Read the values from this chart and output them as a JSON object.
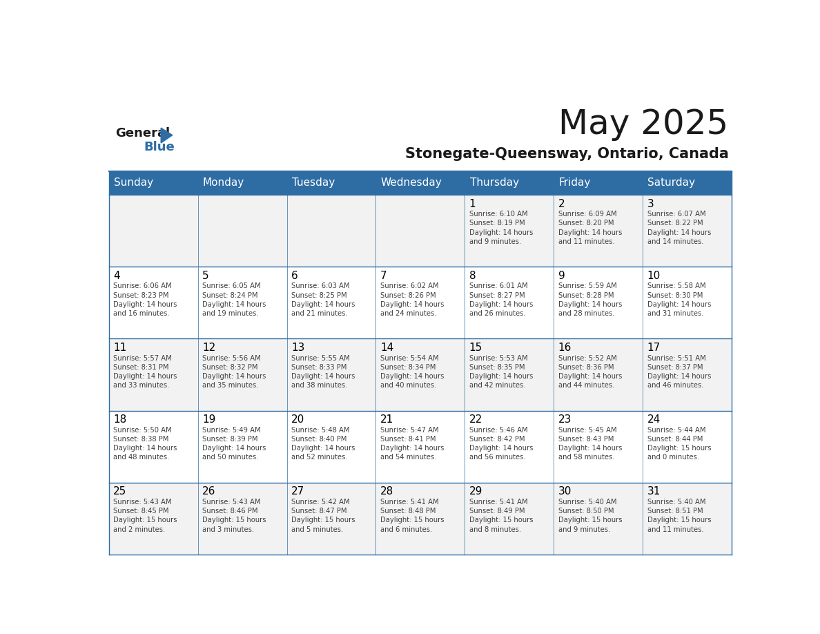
{
  "title": "May 2025",
  "subtitle": "Stonegate-Queensway, Ontario, Canada",
  "header_bg": "#2E6DA4",
  "header_text_color": "#FFFFFF",
  "day_names": [
    "Sunday",
    "Monday",
    "Tuesday",
    "Wednesday",
    "Thursday",
    "Friday",
    "Saturday"
  ],
  "bg_color": "#FFFFFF",
  "cell_bg": "#F2F2F2",
  "cell_bg_alt": "#FFFFFF",
  "border_color": "#2E6DA4",
  "day_num_color": "#000000",
  "text_color": "#404040",
  "title_color": "#1a1a1a",
  "logo_general_color": "#1a1a1a",
  "logo_blue_color": "#2E6DA4",
  "weeks": [
    {
      "days": [
        {
          "date": "",
          "info": ""
        },
        {
          "date": "",
          "info": ""
        },
        {
          "date": "",
          "info": ""
        },
        {
          "date": "",
          "info": ""
        },
        {
          "date": "1",
          "info": "Sunrise: 6:10 AM\nSunset: 8:19 PM\nDaylight: 14 hours\nand 9 minutes."
        },
        {
          "date": "2",
          "info": "Sunrise: 6:09 AM\nSunset: 8:20 PM\nDaylight: 14 hours\nand 11 minutes."
        },
        {
          "date": "3",
          "info": "Sunrise: 6:07 AM\nSunset: 8:22 PM\nDaylight: 14 hours\nand 14 minutes."
        }
      ]
    },
    {
      "days": [
        {
          "date": "4",
          "info": "Sunrise: 6:06 AM\nSunset: 8:23 PM\nDaylight: 14 hours\nand 16 minutes."
        },
        {
          "date": "5",
          "info": "Sunrise: 6:05 AM\nSunset: 8:24 PM\nDaylight: 14 hours\nand 19 minutes."
        },
        {
          "date": "6",
          "info": "Sunrise: 6:03 AM\nSunset: 8:25 PM\nDaylight: 14 hours\nand 21 minutes."
        },
        {
          "date": "7",
          "info": "Sunrise: 6:02 AM\nSunset: 8:26 PM\nDaylight: 14 hours\nand 24 minutes."
        },
        {
          "date": "8",
          "info": "Sunrise: 6:01 AM\nSunset: 8:27 PM\nDaylight: 14 hours\nand 26 minutes."
        },
        {
          "date": "9",
          "info": "Sunrise: 5:59 AM\nSunset: 8:28 PM\nDaylight: 14 hours\nand 28 minutes."
        },
        {
          "date": "10",
          "info": "Sunrise: 5:58 AM\nSunset: 8:30 PM\nDaylight: 14 hours\nand 31 minutes."
        }
      ]
    },
    {
      "days": [
        {
          "date": "11",
          "info": "Sunrise: 5:57 AM\nSunset: 8:31 PM\nDaylight: 14 hours\nand 33 minutes."
        },
        {
          "date": "12",
          "info": "Sunrise: 5:56 AM\nSunset: 8:32 PM\nDaylight: 14 hours\nand 35 minutes."
        },
        {
          "date": "13",
          "info": "Sunrise: 5:55 AM\nSunset: 8:33 PM\nDaylight: 14 hours\nand 38 minutes."
        },
        {
          "date": "14",
          "info": "Sunrise: 5:54 AM\nSunset: 8:34 PM\nDaylight: 14 hours\nand 40 minutes."
        },
        {
          "date": "15",
          "info": "Sunrise: 5:53 AM\nSunset: 8:35 PM\nDaylight: 14 hours\nand 42 minutes."
        },
        {
          "date": "16",
          "info": "Sunrise: 5:52 AM\nSunset: 8:36 PM\nDaylight: 14 hours\nand 44 minutes."
        },
        {
          "date": "17",
          "info": "Sunrise: 5:51 AM\nSunset: 8:37 PM\nDaylight: 14 hours\nand 46 minutes."
        }
      ]
    },
    {
      "days": [
        {
          "date": "18",
          "info": "Sunrise: 5:50 AM\nSunset: 8:38 PM\nDaylight: 14 hours\nand 48 minutes."
        },
        {
          "date": "19",
          "info": "Sunrise: 5:49 AM\nSunset: 8:39 PM\nDaylight: 14 hours\nand 50 minutes."
        },
        {
          "date": "20",
          "info": "Sunrise: 5:48 AM\nSunset: 8:40 PM\nDaylight: 14 hours\nand 52 minutes."
        },
        {
          "date": "21",
          "info": "Sunrise: 5:47 AM\nSunset: 8:41 PM\nDaylight: 14 hours\nand 54 minutes."
        },
        {
          "date": "22",
          "info": "Sunrise: 5:46 AM\nSunset: 8:42 PM\nDaylight: 14 hours\nand 56 minutes."
        },
        {
          "date": "23",
          "info": "Sunrise: 5:45 AM\nSunset: 8:43 PM\nDaylight: 14 hours\nand 58 minutes."
        },
        {
          "date": "24",
          "info": "Sunrise: 5:44 AM\nSunset: 8:44 PM\nDaylight: 15 hours\nand 0 minutes."
        }
      ]
    },
    {
      "days": [
        {
          "date": "25",
          "info": "Sunrise: 5:43 AM\nSunset: 8:45 PM\nDaylight: 15 hours\nand 2 minutes."
        },
        {
          "date": "26",
          "info": "Sunrise: 5:43 AM\nSunset: 8:46 PM\nDaylight: 15 hours\nand 3 minutes."
        },
        {
          "date": "27",
          "info": "Sunrise: 5:42 AM\nSunset: 8:47 PM\nDaylight: 15 hours\nand 5 minutes."
        },
        {
          "date": "28",
          "info": "Sunrise: 5:41 AM\nSunset: 8:48 PM\nDaylight: 15 hours\nand 6 minutes."
        },
        {
          "date": "29",
          "info": "Sunrise: 5:41 AM\nSunset: 8:49 PM\nDaylight: 15 hours\nand 8 minutes."
        },
        {
          "date": "30",
          "info": "Sunrise: 5:40 AM\nSunset: 8:50 PM\nDaylight: 15 hours\nand 9 minutes."
        },
        {
          "date": "31",
          "info": "Sunrise: 5:40 AM\nSunset: 8:51 PM\nDaylight: 15 hours\nand 11 minutes."
        }
      ]
    }
  ]
}
